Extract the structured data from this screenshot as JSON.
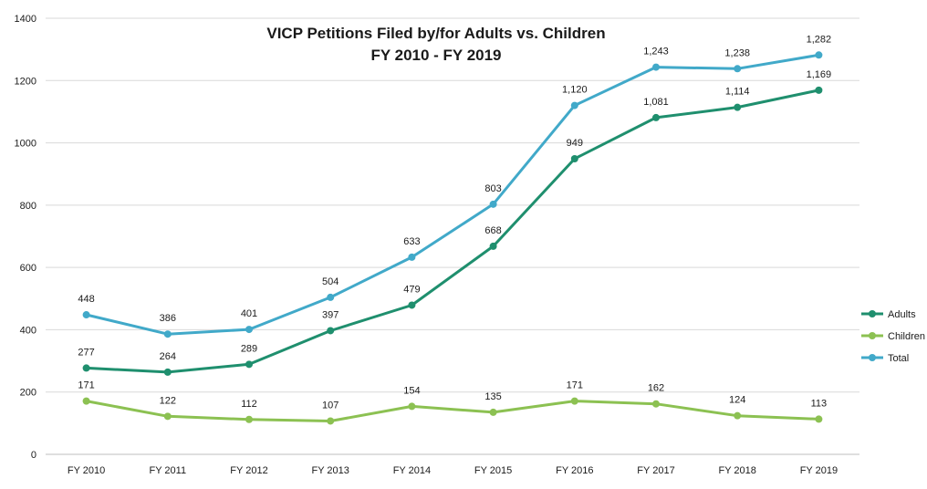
{
  "chart_data": {
    "type": "line",
    "title_lines": [
      "VICP Petitions Filed by/for Adults vs. Children",
      "FY 2010 - FY 2019"
    ],
    "xlabel": "",
    "ylabel": "",
    "categories": [
      "FY 2010",
      "FY 2011",
      "FY 2012",
      "FY 2013",
      "FY 2014",
      "FY 2015",
      "FY 2016",
      "FY 2017",
      "FY 2018",
      "FY 2019"
    ],
    "ylim": [
      0,
      1400
    ],
    "yticks": [
      "0",
      "200",
      "400",
      "600",
      "800",
      "1000",
      "1200",
      "1400"
    ],
    "grid": true,
    "legend_position": "right",
    "series": [
      {
        "name": "Adults",
        "color": "#1f8f6e",
        "values": [
          277,
          264,
          289,
          397,
          479,
          668,
          949,
          1081,
          1114,
          1169
        ],
        "labels": [
          "277",
          "264",
          "289",
          "397",
          "479",
          "668",
          "949",
          "1,081",
          "1,114",
          "1,169"
        ]
      },
      {
        "name": "Children",
        "color": "#8cc152",
        "values": [
          171,
          122,
          112,
          107,
          154,
          135,
          171,
          162,
          124,
          113
        ],
        "labels": [
          "171",
          "122",
          "112",
          "107",
          "154",
          "135",
          "171",
          "162",
          "124",
          "113"
        ]
      },
      {
        "name": "Total",
        "color": "#41a9c9",
        "values": [
          448,
          386,
          401,
          504,
          633,
          803,
          1120,
          1243,
          1238,
          1282
        ],
        "labels": [
          "448",
          "386",
          "401",
          "504",
          "633",
          "803",
          "1,120",
          "1,243",
          "1,238",
          "1,282"
        ]
      }
    ]
  }
}
